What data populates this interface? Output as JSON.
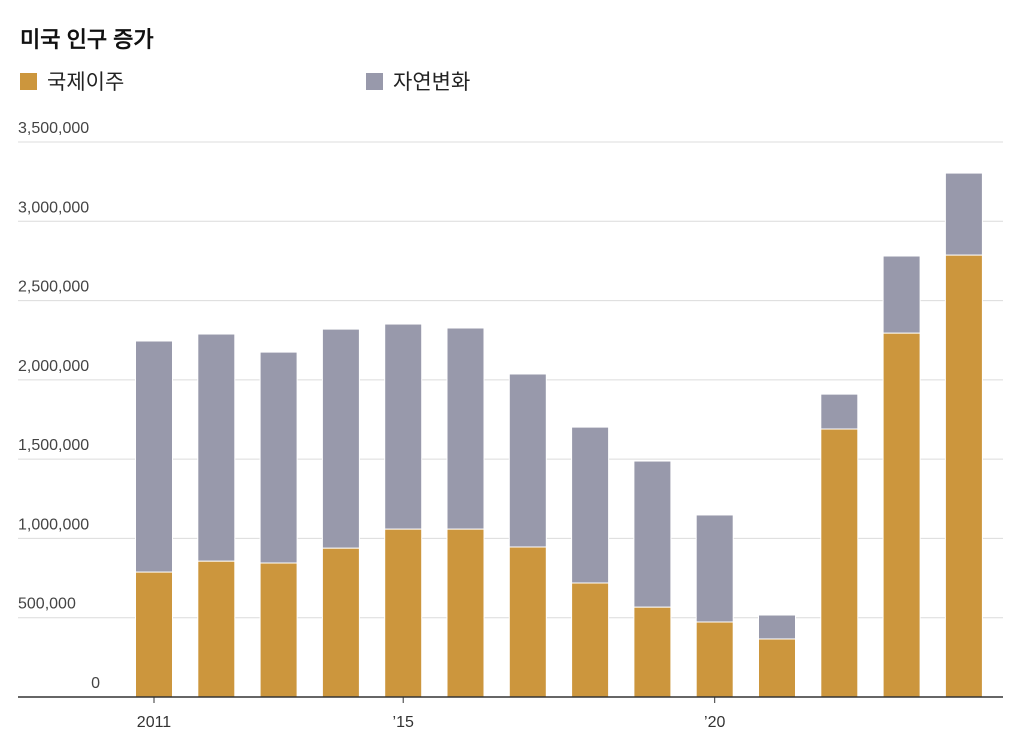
{
  "chart_data": {
    "type": "bar",
    "stacked": true,
    "title": "미국 인구 증가",
    "x": [
      2011,
      2012,
      2013,
      2014,
      2015,
      2016,
      2017,
      2018,
      2019,
      2020,
      2021,
      2022,
      2023,
      2024
    ],
    "x_tick_labels": [
      {
        "x": 2011,
        "label": "2011"
      },
      {
        "x": 2015,
        "label": "’15"
      },
      {
        "x": 2020,
        "label": "’20"
      }
    ],
    "series": [
      {
        "name": "국제이주",
        "color": "#CC963D",
        "values": [
          788000,
          857000,
          845000,
          939000,
          1059000,
          1059000,
          946000,
          719000,
          567000,
          473000,
          366000,
          1690000,
          2295000,
          2787000
        ]
      },
      {
        "name": "자연변화",
        "color": "#9899AB",
        "values": [
          1457000,
          1432000,
          1330000,
          1381000,
          1293000,
          1268000,
          1091000,
          983000,
          921000,
          675000,
          151000,
          220000,
          486000,
          517000
        ]
      }
    ],
    "ylim": [
      0,
      3500000
    ],
    "y_ticks": [
      0,
      500000,
      1000000,
      1500000,
      2000000,
      2500000,
      3000000,
      3500000
    ],
    "y_tick_labels": [
      "0",
      "500,000",
      "1,000,000",
      "1,500,000",
      "2,000,000",
      "2,500,000",
      "3,000,000",
      "3,500,000"
    ],
    "grid": true,
    "legend_position": "top-left"
  }
}
